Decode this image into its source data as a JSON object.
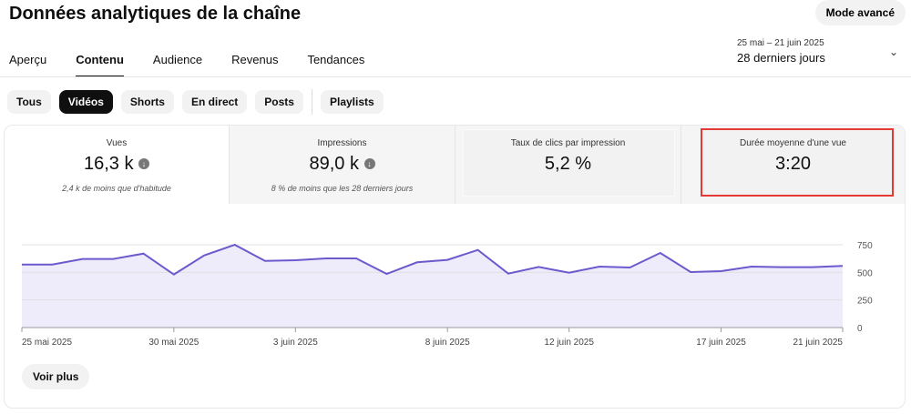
{
  "header": {
    "title": "Données analytiques de la chaîne",
    "mode_button": "Mode avancé",
    "date_range": "25 mai – 21 juin 2025",
    "period": "28 derniers jours"
  },
  "tabs": [
    "Aperçu",
    "Contenu",
    "Audience",
    "Revenus",
    "Tendances"
  ],
  "chips": [
    "Tous",
    "Vidéos",
    "Shorts",
    "En direct",
    "Posts",
    "Playlists"
  ],
  "metrics": [
    {
      "label": "Vues",
      "value": "16,3 k",
      "note": "2,4 k de moins que d'habitude"
    },
    {
      "label": "Impressions",
      "value": "89,0 k",
      "note": "8 % de moins que les 28 derniers jours"
    },
    {
      "label": "Taux de clics par impression",
      "value": "5,2 %"
    },
    {
      "label": "Durée moyenne d'une vue",
      "value": "3:20"
    }
  ],
  "voir_plus": "Voir plus",
  "colors": {
    "line": "#6a5acd",
    "fill": "#eeebfa",
    "highlight": "#e53935"
  },
  "chart_data": {
    "type": "area",
    "ylim": [
      0,
      750
    ],
    "yticks": [
      0,
      250,
      500,
      750
    ],
    "xtick_labels": [
      {
        "i": 0,
        "label": "25 mai 2025"
      },
      {
        "i": 5,
        "label": "30 mai 2025"
      },
      {
        "i": 9,
        "label": "3 juin 2025"
      },
      {
        "i": 14,
        "label": "8 juin 2025"
      },
      {
        "i": 18,
        "label": "12 juin 2025"
      },
      {
        "i": 23,
        "label": "17 juin 2025"
      },
      {
        "i": 27,
        "label": "21 juin 2025"
      }
    ],
    "values": [
      571,
      571,
      621,
      621,
      670,
      481,
      654,
      750,
      604,
      610,
      626,
      626,
      486,
      591,
      613,
      703,
      489,
      549,
      497,
      552,
      544,
      676,
      503,
      511,
      552,
      547,
      547,
      558
    ]
  }
}
